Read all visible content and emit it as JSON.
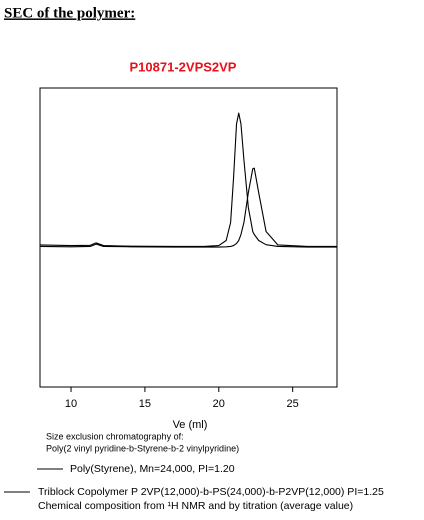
{
  "heading": "SEC of the polymer:",
  "chart_data": {
    "type": "line",
    "title": "P10871-2VPS2VP",
    "x_label": "Ve (ml)",
    "x": [
      7.9,
      10,
      11.3,
      11.7,
      12.2,
      14,
      17,
      19,
      20,
      20.5,
      20.8,
      21.0,
      21.2,
      21.35,
      21.5,
      21.7,
      22.0,
      22.3,
      22.4,
      22.7,
      23.2,
      24,
      26,
      28
    ],
    "series": [
      {
        "name": "Poly(Styrene), Mn=24,000, PI=1.20",
        "color": "#000000",
        "values": [
          47,
          46.9,
          47,
          47.8,
          47,
          46.9,
          46.8,
          46.8,
          46.8,
          46.9,
          47,
          47.3,
          48,
          49,
          51,
          55,
          65,
          73,
          73.2,
          65,
          52,
          47.5,
          47,
          47
        ]
      },
      {
        "name": "Triblock Copolymer P 2VP(12,000)-b-PS(24,000)-b-P2VP(12,000) PI=1.25",
        "color": "#000000",
        "values": [
          47.5,
          47.3,
          47.4,
          48.2,
          47.3,
          47.1,
          47,
          47,
          47.3,
          49,
          55,
          70,
          88,
          91.6,
          88,
          76,
          60,
          52,
          51,
          49,
          47.6,
          47,
          46.8,
          46.8
        ]
      }
    ],
    "note": "Chemical composition from ¹H NMR and by titration (average value)",
    "xlim": [
      7.9,
      28
    ],
    "ylim": [
      0,
      100
    ],
    "xticks": [
      10,
      15,
      20,
      25
    ],
    "title_color": "#e8101a"
  },
  "caption": [
    "Size exclusion chromatography of:",
    "Poly(2 vinyl pyridine-b-Styrene-b-2 vinylpyridine)"
  ]
}
